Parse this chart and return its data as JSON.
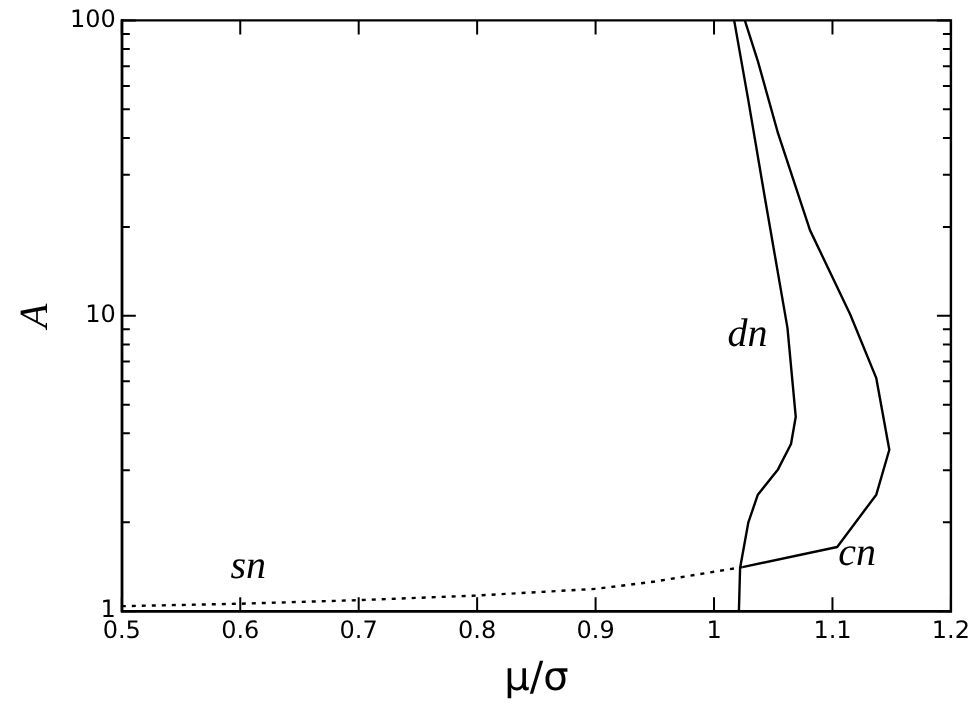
{
  "chart_data": {
    "type": "line",
    "xlabel": "μ/σ",
    "ylabel": "A",
    "log": "y",
    "grid": false,
    "legend": false,
    "marker": "none",
    "xlim": [
      0.5,
      1.2
    ],
    "xticks": [
      0.5,
      0.6,
      0.7,
      0.8,
      0.9,
      1,
      1.1,
      1.2
    ],
    "ylim": [
      1,
      100
    ],
    "yticks": [
      1,
      {
        "value": 2,
        "label": null
      },
      {
        "value": 3,
        "label": null
      },
      {
        "value": 4,
        "label": null
      },
      {
        "value": 5,
        "label": null
      },
      {
        "value": 6,
        "label": null
      },
      {
        "value": 7,
        "label": null
      },
      {
        "value": 8,
        "label": null
      },
      {
        "value": 9,
        "label": null
      },
      10,
      {
        "value": 20,
        "label": null
      },
      {
        "value": 30,
        "label": null
      },
      {
        "value": 40,
        "label": null
      },
      {
        "value": 50,
        "label": null
      },
      {
        "value": 60,
        "label": null
      },
      {
        "value": 70,
        "label": null
      },
      {
        "value": 80,
        "label": null
      },
      {
        "value": 90,
        "label": null
      },
      100
    ],
    "series": [
      {
        "name": "sn",
        "color": "#000000",
        "line_style": "dotted",
        "x": [
          0.5,
          0.6,
          0.7,
          0.8,
          0.9,
          0.95,
          1.0,
          1.024
        ],
        "values": [
          1.04,
          1.06,
          1.09,
          1.13,
          1.19,
          1.26,
          1.36,
          1.41
        ]
      },
      {
        "name": "dn",
        "color": "#000000",
        "line_style": "solid",
        "x": [
          1.021,
          1.022,
          1.029,
          1.037,
          1.054,
          1.065,
          1.069,
          1.062,
          1.043,
          1.029,
          1.017
        ],
        "values": [
          1,
          1.4,
          2.0,
          2.48,
          3.02,
          3.68,
          4.55,
          9.1,
          25,
          53.5,
          100
        ]
      },
      {
        "name": "cn",
        "color": "#000000",
        "line_style": "solid",
        "x": [
          1.024,
          1.104,
          1.137,
          1.148,
          1.137,
          1.115,
          1.081,
          1.054,
          1.037,
          1.026
        ],
        "values": [
          1.41,
          1.65,
          2.48,
          3.52,
          6.15,
          10.1,
          19.5,
          41.5,
          72.8,
          100
        ]
      }
    ]
  }
}
